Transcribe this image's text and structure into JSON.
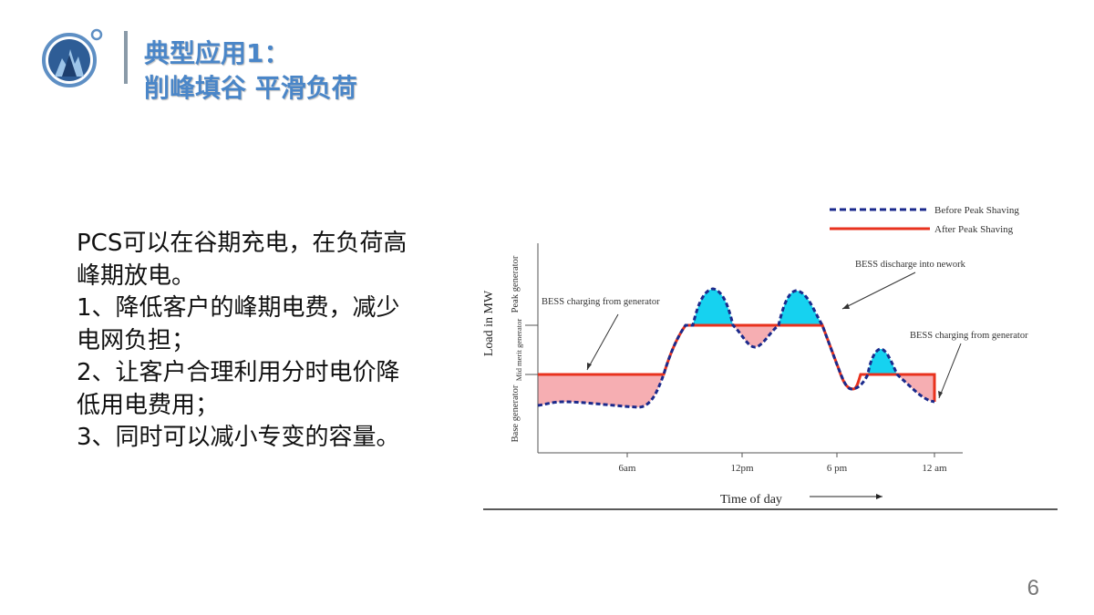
{
  "slide": {
    "title_line1": "典型应用1：",
    "title_line2": "削峰填谷  平滑负荷",
    "body_lines": [
      "PCS可以在谷期充电，在负荷高",
      "峰期放电。",
      "1、降低客户的峰期电费，减少",
      "电网负担；",
      "2、让客户合理利用分时电价降",
      "低用电费用；",
      "3、同时可以减小专变的容量。"
    ],
    "page_number": "6",
    "logo_icon": "building-globe-logo"
  },
  "chart_data": {
    "type": "line",
    "xlabel": "Time of day",
    "ylabel": "Load in MW",
    "x_ticks": [
      "6am",
      "12pm",
      "6 pm",
      "12 am"
    ],
    "y_bands": [
      "Peak generator",
      "Mid merit generator",
      "Base generator"
    ],
    "legend": [
      "Before Peak Shaving",
      "After Peak Shaving"
    ],
    "legend_position": "top-right",
    "annotations": [
      "BESS charging from generator",
      "BESS discharge into nework",
      "BESS charging from generator"
    ],
    "colors": {
      "before": "#1b2a8c",
      "after": "#e8321e",
      "discharge_fill": "#16d2f0",
      "charge_fill": "#f4a0a4"
    }
  }
}
